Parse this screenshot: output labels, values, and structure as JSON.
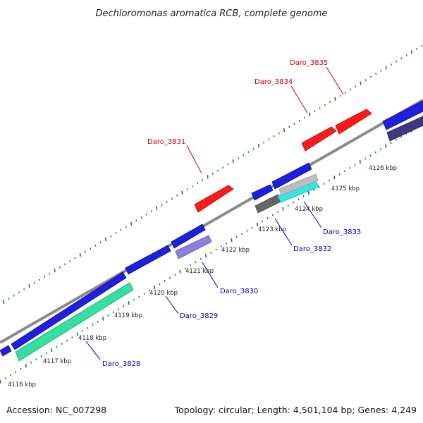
{
  "title": "Dechloromonas aromatica RCB, complete genome",
  "footer": {
    "accession": "Accession: NC_007298",
    "summary": "Topology: circular; Length: 4,501,104 bp; Genes: 4,249"
  },
  "colors": {
    "backbone": "#888888",
    "ticks": "#1a7a1a",
    "label_top": "#cc0000",
    "label_bottom": "#0000cc"
  },
  "kbp_labels": [
    "4116 kbp",
    "4117 kbp",
    "4118 kbp",
    "4119 kbp",
    "4120 kbp",
    "4121 kbp",
    "4122 kbp",
    "4123 kbp",
    "4124 kbp",
    "4125 kbp",
    "4126 kbp"
  ],
  "gene_labels_top": [
    "Daro_3831",
    "Daro_3834",
    "Daro_3835"
  ],
  "gene_labels_bottom": [
    "Daro_3828",
    "Daro_3829",
    "Daro_3830",
    "Daro_3832",
    "Daro_3833"
  ]
}
